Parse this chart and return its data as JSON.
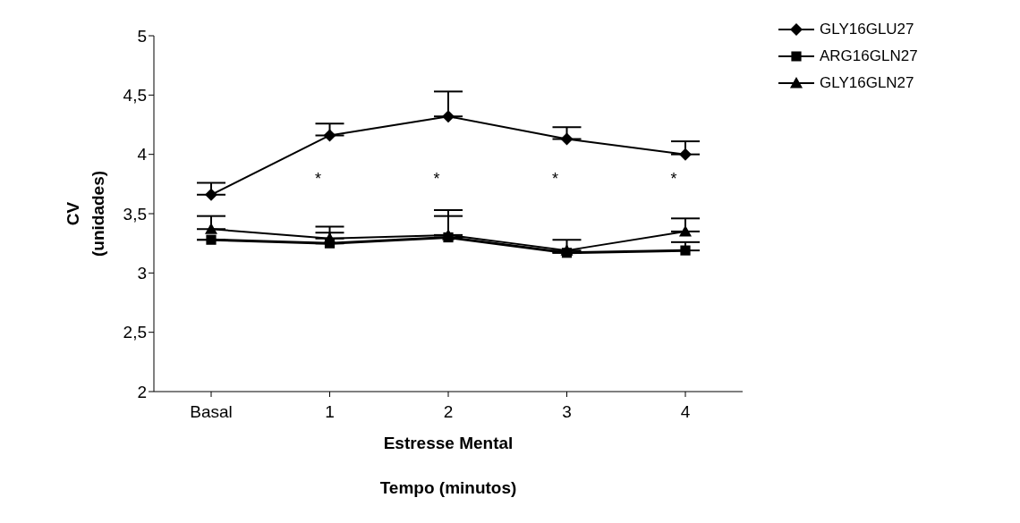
{
  "chart_data": {
    "type": "line",
    "xlabel": "Estresse Mental\nTempo (minutos)",
    "ylabel": "CV\n(unidades)",
    "categories": [
      "Basal",
      "1",
      "2",
      "3",
      "4"
    ],
    "ylim": [
      2,
      5
    ],
    "yticks": [
      2,
      {
        "value": 2.5,
        "label": "2,5"
      },
      3,
      {
        "value": 3.5,
        "label": "3,5"
      },
      4,
      {
        "value": 4.5,
        "label": "4,5"
      },
      5
    ],
    "grid": false,
    "legend": "top right",
    "line_style": "solid",
    "series": [
      {
        "name": "GLY16GLU27",
        "color": "#000000",
        "marker": "diamond",
        "values": [
          3.66,
          4.16,
          4.32,
          4.13,
          4.0
        ],
        "errors": [
          [
            3.66,
            3.76
          ],
          [
            4.16,
            4.26
          ],
          [
            4.32,
            4.53
          ],
          [
            4.13,
            4.23
          ],
          [
            4.0,
            4.11
          ]
        ]
      },
      {
        "name": "ARG16GLN27",
        "color": "#000000",
        "marker": "square",
        "values": [
          3.28,
          3.25,
          3.3,
          3.17,
          3.19
        ],
        "errors": [
          null,
          [
            3.25,
            3.34
          ],
          [
            3.3,
            3.48
          ],
          null,
          [
            3.19,
            3.26
          ]
        ]
      },
      {
        "name": "GLY16GLN27",
        "color": "#000000",
        "marker": "triangle",
        "values": [
          3.37,
          3.29,
          3.32,
          3.19,
          3.35
        ],
        "errors": [
          [
            3.37,
            3.48
          ],
          [
            3.29,
            3.39
          ],
          [
            3.32,
            3.53
          ],
          [
            3.19,
            3.28
          ],
          [
            3.35,
            3.46
          ]
        ]
      }
    ],
    "annotations": [
      "*",
      "*",
      "*",
      "*"
    ]
  }
}
